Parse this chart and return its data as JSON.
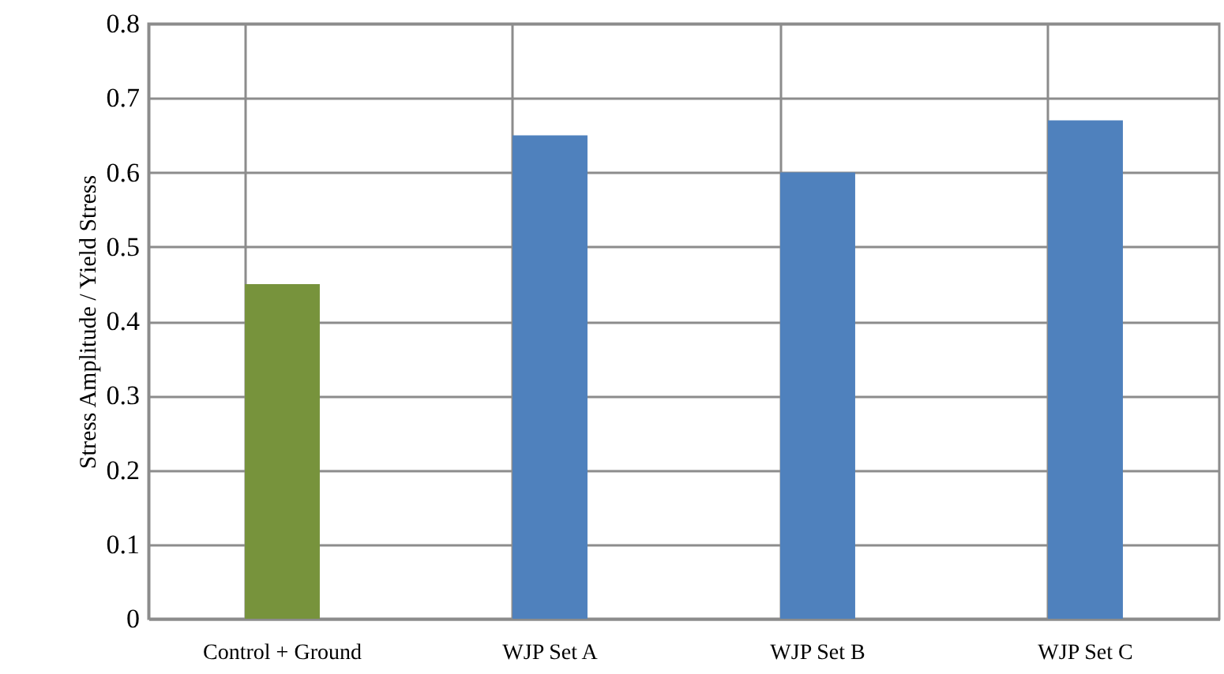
{
  "chart_data": {
    "type": "bar",
    "ylabel": "Stress Amplitude / Yield Stress",
    "categories": [
      "Control + Ground",
      "WJP Set A",
      "WJP Set B",
      "WJP Set C"
    ],
    "values": [
      0.45,
      0.65,
      0.6,
      0.67
    ],
    "colors": [
      "#77933c",
      "#4f81bd",
      "#4f81bd",
      "#4f81bd"
    ],
    "ylim": [
      0,
      0.8
    ],
    "yticks": [
      0,
      0.1,
      0.2,
      0.3,
      0.4,
      0.5,
      0.6,
      0.7,
      0.8
    ],
    "grid": true
  }
}
